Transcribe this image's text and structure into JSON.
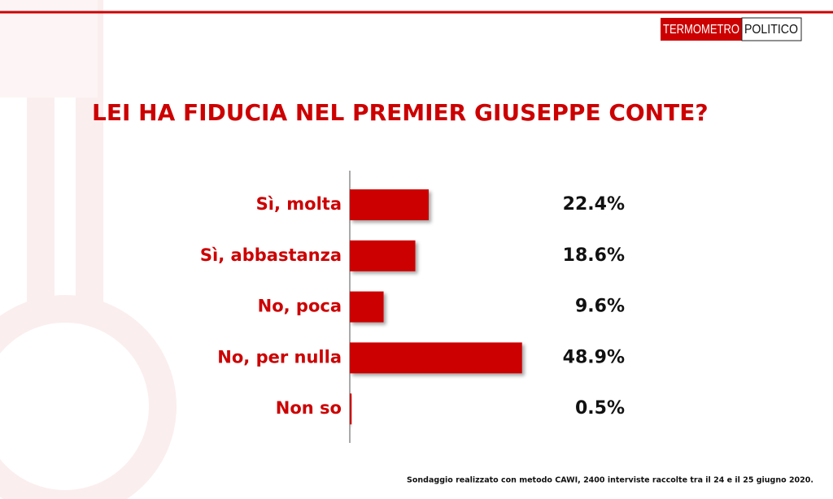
{
  "header": {
    "logo_left": "TERMOMETRO",
    "logo_right": "POLITICO"
  },
  "chart_data": {
    "type": "bar",
    "orientation": "horizontal",
    "title": "LEI HA FIDUCIA NEL PREMIER GIUSEPPE CONTE?",
    "categories": [
      "Sì, molta",
      "Sì, abbastanza",
      "No, poca",
      "No, per nulla",
      "Non so"
    ],
    "values": [
      22.4,
      18.6,
      9.6,
      48.9,
      0.5
    ],
    "value_labels": [
      "22.4%",
      "18.6%",
      "9.6%",
      "48.9%",
      "0.5%"
    ],
    "color": "#cc0000"
  },
  "footnote": "Sondaggio realizzato con metodo CAWI, 2400 interviste raccolte tra il 24 e il 25 giugno 2020."
}
